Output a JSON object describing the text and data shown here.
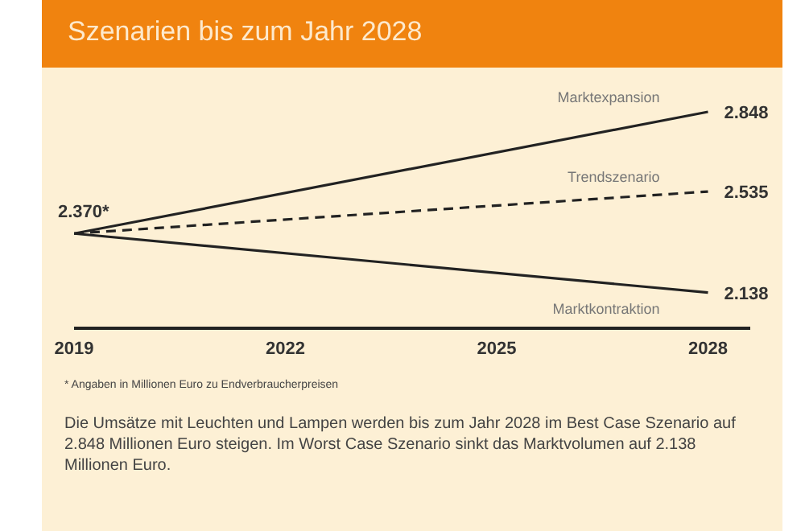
{
  "chart_data": {
    "type": "line",
    "title": "Szenarien bis zum Jahr 2028",
    "x": [
      2019,
      2028
    ],
    "xlim": [
      2019,
      2028.6
    ],
    "xticks": [
      2019,
      2022,
      2025,
      2028
    ],
    "series": [
      {
        "name": "Marktexpansion",
        "color": "#222222",
        "line_style": "solid",
        "values": [
          2370,
          2848
        ],
        "value_labels": [
          "2.370*",
          "2.848"
        ]
      },
      {
        "name": "Trendszenario",
        "color": "#222222",
        "line_style": "dashed",
        "values": [
          2370,
          2535
        ],
        "value_labels": [
          null,
          "2.535"
        ]
      },
      {
        "name": "Marktkontraktion",
        "color": "#222222",
        "line_style": "solid",
        "values": [
          2370,
          2138
        ],
        "value_labels": [
          null,
          "2.138"
        ]
      }
    ],
    "marker": "none",
    "grid": false,
    "legend": false,
    "annotations": [
      "* Angaben in Millionen Euro zu Endverbraucherpreisen",
      "Die Umsätze mit Leuchten und Lampen werden bis zum Jahr 2028 im Best Case Szenario auf 2.848 Millionen Euro steigen. Im Worst Case Szenario sinkt das Marktvolumen auf 2.138 Millionen Euro."
    ]
  }
}
